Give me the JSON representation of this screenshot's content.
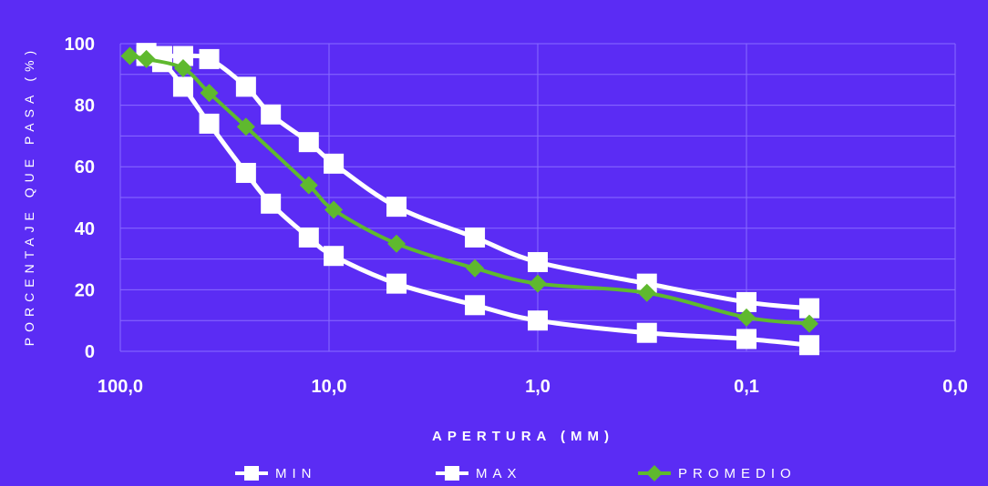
{
  "colors": {
    "background": "#5b2cf4",
    "grid": "#8a6bff",
    "min": "#ffffff",
    "max": "#ffffff",
    "promedio": "#5fb92e"
  },
  "chart_data": {
    "type": "line",
    "xlabel": "APERTURA (MM)",
    "ylabel": "PORCENTAJE QUE PASA (%)",
    "x_scale": "log",
    "x_reversed": true,
    "xlim": [
      100,
      0.01
    ],
    "ylim": [
      0,
      100
    ],
    "x_ticks": [
      100,
      10,
      1,
      0.1,
      0.01
    ],
    "x_tick_labels": [
      "100,0",
      "10,0",
      "1,0",
      "0,1",
      "0,0"
    ],
    "y_ticks": [
      0,
      20,
      40,
      60,
      80,
      100
    ],
    "y_tick_labels": [
      "0",
      "20",
      "40",
      "60",
      "80",
      "100"
    ],
    "grid": true,
    "legend_position": "bottom",
    "series": [
      {
        "name": "MIN",
        "marker": "square",
        "x": [
          75,
          63,
          50,
          37.5,
          25,
          19,
          12.5,
          9.5,
          4.75,
          2.0,
          1.0,
          0.3,
          0.1,
          0.05
        ],
        "y": [
          96,
          94,
          86,
          74,
          58,
          48,
          37,
          31,
          22,
          15,
          10,
          6,
          4,
          2
        ]
      },
      {
        "name": "MAX",
        "marker": "square",
        "x": [
          75,
          63,
          50,
          37.5,
          25,
          19,
          12.5,
          9.5,
          4.75,
          2.0,
          1.0,
          0.3,
          0.1,
          0.05
        ],
        "y": [
          97,
          96,
          96,
          95,
          86,
          77,
          68,
          61,
          47,
          37,
          29,
          22,
          16,
          14
        ]
      },
      {
        "name": "PROMEDIO",
        "marker": "diamond",
        "x": [
          90,
          75,
          50,
          37.5,
          25,
          12.5,
          9.5,
          4.75,
          2.0,
          1.0,
          0.3,
          0.1,
          0.05
        ],
        "y": [
          96,
          95,
          92,
          84,
          73,
          54,
          46,
          35,
          27,
          22,
          19,
          11,
          9
        ]
      }
    ]
  }
}
